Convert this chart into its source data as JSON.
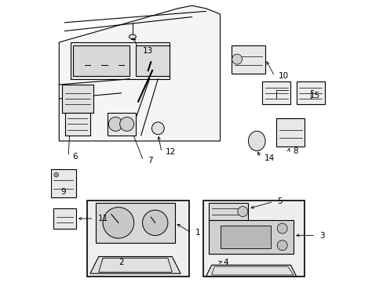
{
  "bg_color": "#ffffff",
  "line_color": "#000000",
  "box_bg": "#eeeeee"
}
